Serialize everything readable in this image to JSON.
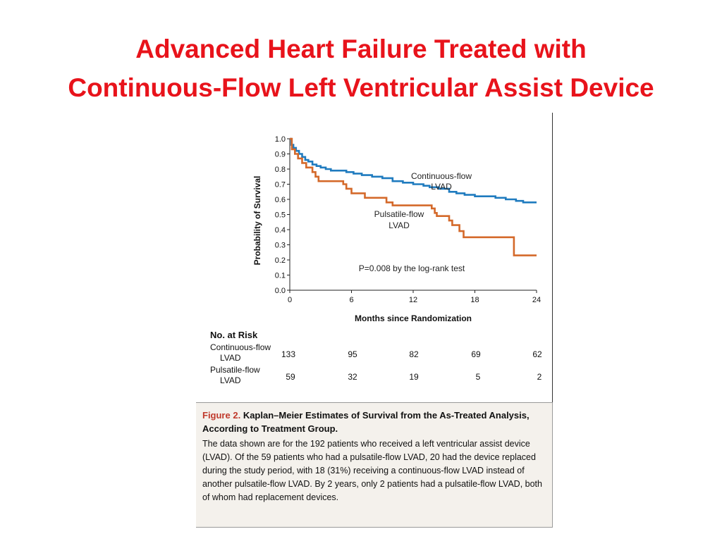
{
  "slide": {
    "title_line1": "Advanced Heart Failure Treated with",
    "title_line2": "Continuous-Flow Left Ventricular Assist Device"
  },
  "chart_data": {
    "type": "line",
    "step": true,
    "xlabel": "Months since Randomization",
    "ylabel": "Probability of Survival",
    "xlim": [
      0,
      24
    ],
    "ylim": [
      0,
      1
    ],
    "xticks": [
      "0",
      "6",
      "12",
      "18",
      "24"
    ],
    "yticks": [
      "0.0",
      "0.1",
      "0.2",
      "0.3",
      "0.4",
      "0.5",
      "0.6",
      "0.7",
      "0.8",
      "0.9",
      "1.0"
    ],
    "grid": false,
    "annotation": "P=0.008 by the log-rank test",
    "series": [
      {
        "name_line1": "Continuous-flow",
        "name_line2": "LVAD",
        "color": "#1f7bbf",
        "points": [
          [
            0,
            1.0
          ],
          [
            0.15,
            0.96
          ],
          [
            0.35,
            0.94
          ],
          [
            0.6,
            0.92
          ],
          [
            0.9,
            0.9
          ],
          [
            1.2,
            0.88
          ],
          [
            1.5,
            0.86
          ],
          [
            1.8,
            0.85
          ],
          [
            2.2,
            0.83
          ],
          [
            2.6,
            0.82
          ],
          [
            3.0,
            0.81
          ],
          [
            3.5,
            0.8
          ],
          [
            4.0,
            0.79
          ],
          [
            5.5,
            0.78
          ],
          [
            6.2,
            0.77
          ],
          [
            7.0,
            0.76
          ],
          [
            8.0,
            0.75
          ],
          [
            9.0,
            0.74
          ],
          [
            10.0,
            0.72
          ],
          [
            11.0,
            0.71
          ],
          [
            12.0,
            0.7
          ],
          [
            13.0,
            0.69
          ],
          [
            13.6,
            0.68
          ],
          [
            14.5,
            0.67
          ],
          [
            15.5,
            0.65
          ],
          [
            16.2,
            0.64
          ],
          [
            17.0,
            0.63
          ],
          [
            18.0,
            0.62
          ],
          [
            20.0,
            0.61
          ],
          [
            21.0,
            0.6
          ],
          [
            22.0,
            0.59
          ],
          [
            22.7,
            0.58
          ],
          [
            24.0,
            0.58
          ]
        ]
      },
      {
        "name_line1": "Pulsatile-flow",
        "name_line2": "LVAD",
        "color": "#d4692a",
        "points": [
          [
            0,
            1.0
          ],
          [
            0.2,
            0.93
          ],
          [
            0.5,
            0.9
          ],
          [
            0.8,
            0.87
          ],
          [
            1.2,
            0.84
          ],
          [
            1.6,
            0.81
          ],
          [
            2.2,
            0.78
          ],
          [
            2.5,
            0.75
          ],
          [
            2.8,
            0.72
          ],
          [
            5.2,
            0.7
          ],
          [
            5.5,
            0.67
          ],
          [
            6.0,
            0.64
          ],
          [
            7.3,
            0.61
          ],
          [
            9.4,
            0.58
          ],
          [
            10.0,
            0.56
          ],
          [
            13.8,
            0.54
          ],
          [
            14.1,
            0.51
          ],
          [
            14.3,
            0.49
          ],
          [
            15.5,
            0.46
          ],
          [
            15.8,
            0.43
          ],
          [
            16.5,
            0.39
          ],
          [
            16.9,
            0.35
          ],
          [
            21.8,
            0.23
          ],
          [
            24.0,
            0.23
          ]
        ]
      }
    ]
  },
  "risk_table": {
    "title": "No. at Risk",
    "rows": [
      {
        "label_line1": "Continuous-flow",
        "label_line2": "LVAD",
        "values": [
          "133",
          "95",
          "82",
          "69",
          "62"
        ]
      },
      {
        "label_line1": "Pulsatile-flow",
        "label_line2": "LVAD",
        "values": [
          "59",
          "32",
          "19",
          "5",
          "2"
        ]
      }
    ]
  },
  "caption": {
    "label": "Figure 2.",
    "heading": "Kaplan–Meier Estimates of Survival from the As-Treated Analysis, According to Treatment Group.",
    "body": "The data shown are for the 192 patients who received a left ventricular assist device (LVAD). Of the 59 patients who had a pulsatile-flow LVAD, 20 had the device replaced during the study period, with 18 (31%) receiving a continuous-flow LVAD instead of another pulsatile-flow LVAD. By 2 years, only 2 patients had a pulsatile-flow LVAD, both of whom had replacement devices."
  }
}
